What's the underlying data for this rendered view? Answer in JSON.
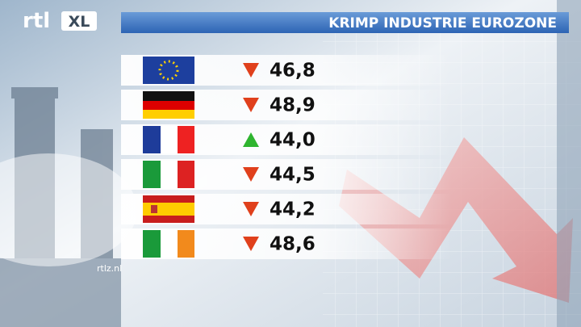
{
  "logo": {
    "brand": "rtl",
    "tag": "XL"
  },
  "title": "KRIMP INDUSTRIE EUROZONE",
  "watermark": "rtlz.nl",
  "rows": [
    {
      "value": "46,8",
      "trend": "down"
    },
    {
      "value": "48,9",
      "trend": "down"
    },
    {
      "value": "44,0",
      "trend": "up"
    },
    {
      "value": "44,5",
      "trend": "down"
    },
    {
      "value": "44,2",
      "trend": "down"
    },
    {
      "value": "48,6",
      "trend": "down"
    }
  ]
}
